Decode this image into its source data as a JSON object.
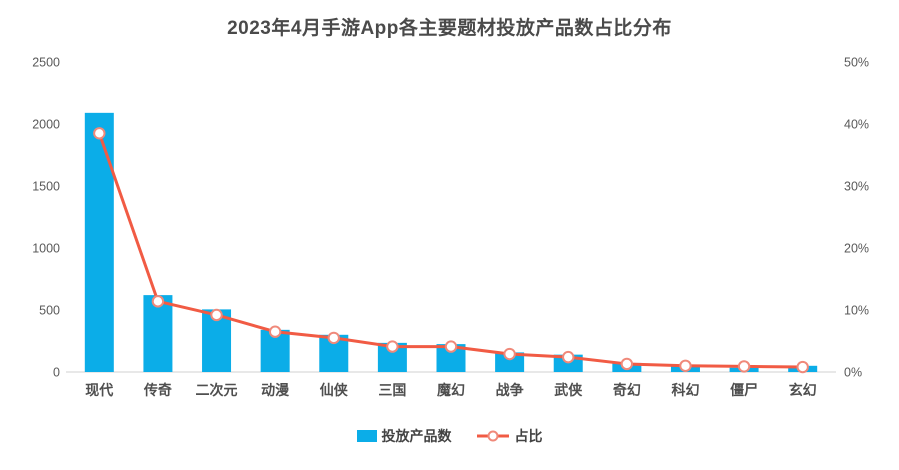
{
  "chart": {
    "title": "2023年4月手游App各主要题材投放产品数占比分布",
    "legend": {
      "bars_label": "投放产品数",
      "line_label": "占比"
    }
  },
  "chart_data": {
    "type": "bar+line",
    "title": "2023年4月手游App各主要题材投放产品数占比分布",
    "categories": [
      "现代",
      "传奇",
      "二次元",
      "动漫",
      "仙侠",
      "三国",
      "魔幻",
      "战争",
      "武侠",
      "奇幻",
      "科幻",
      "僵尸",
      "玄幻"
    ],
    "series": [
      {
        "name": "投放产品数",
        "type": "bar",
        "axis": "left",
        "values": [
          2090,
          620,
          505,
          340,
          300,
          235,
          225,
          158,
          140,
          73,
          53,
          35,
          50
        ]
      },
      {
        "name": "占比",
        "type": "line",
        "axis": "right",
        "unit": "%",
        "values": [
          38.5,
          11.4,
          9.2,
          6.5,
          5.5,
          4.1,
          4.1,
          2.9,
          2.4,
          1.3,
          1.0,
          0.9,
          0.8
        ]
      }
    ],
    "y_left": {
      "label": "",
      "min": 0,
      "max": 2500,
      "tick_values": [
        0,
        500,
        1000,
        1500,
        2000,
        2500
      ],
      "tick_labels": [
        "0",
        "500",
        "1000",
        "1500",
        "2000",
        "2500"
      ]
    },
    "y_right": {
      "label": "",
      "min": 0,
      "max": 50,
      "tick_values": [
        0,
        10,
        20,
        30,
        40,
        50
      ],
      "tick_labels": [
        "0%",
        "10%",
        "20%",
        "30%",
        "40%",
        "50%"
      ]
    },
    "grid": false,
    "legend_position": "bottom",
    "colors": {
      "bar": "#0BADE8",
      "line": "#F15B44",
      "marker_fill": "#FFFFFF",
      "marker_stroke": "#F0897A",
      "axis_line": "#D9D9D9",
      "title_text": "#4A4A4A",
      "tick_text": "#595959",
      "x_label_text": "#4F4F4F"
    }
  }
}
